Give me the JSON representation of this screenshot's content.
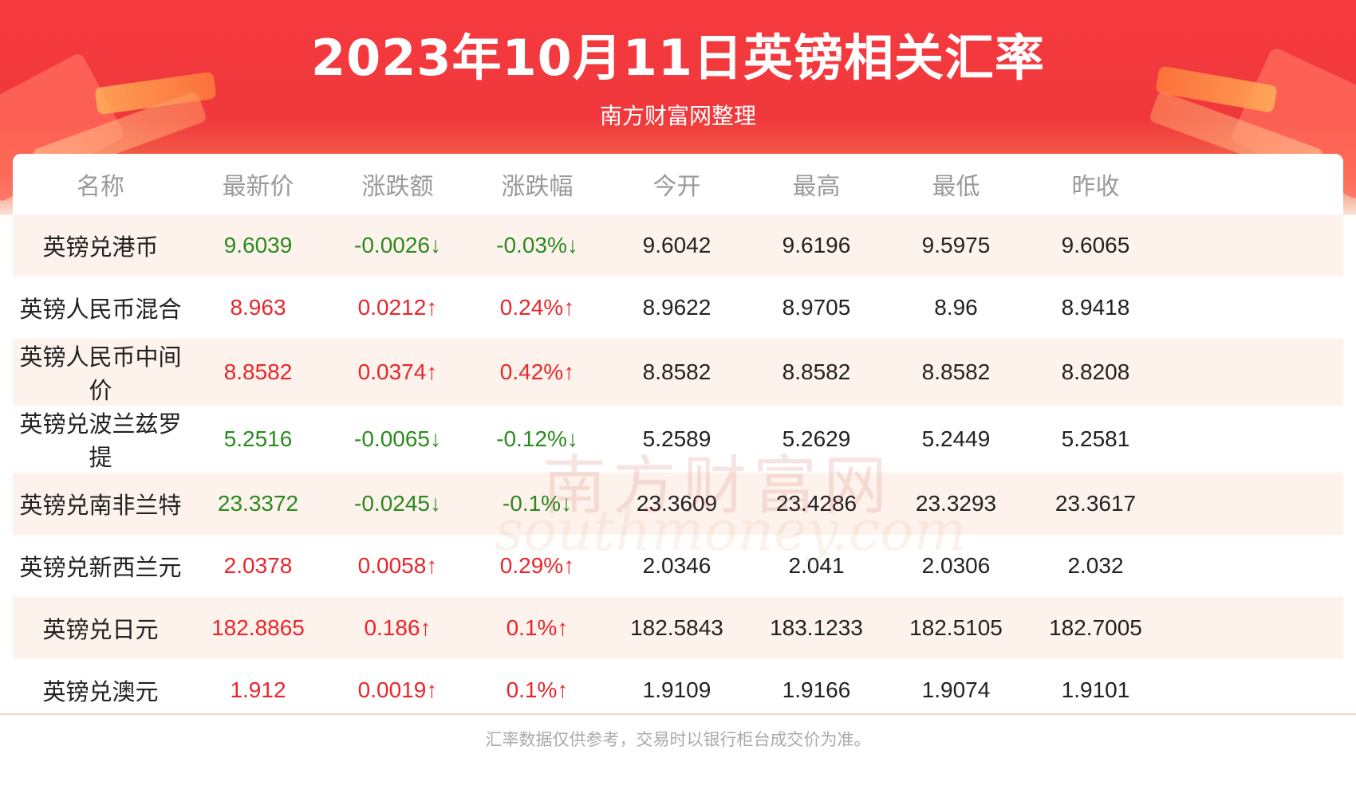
{
  "header": {
    "title": "2023年10月11日英镑相关汇率",
    "subtitle": "南方财富网整理"
  },
  "colors": {
    "header_red": "#f0383c",
    "up_red": "#e8262b",
    "down_green": "#2a8a1e",
    "row_tint": "#fdf3ec"
  },
  "table": {
    "columns": [
      "名称",
      "最新价",
      "涨跌额",
      "涨跌幅",
      "今开",
      "最高",
      "最低",
      "昨收"
    ],
    "rows": [
      {
        "name": "英镑兑港币",
        "latest": "9.6039",
        "change": "-0.0026↓",
        "change_pct": "-0.03%↓",
        "open": "9.6042",
        "high": "9.6196",
        "low": "9.5975",
        "prev_close": "9.6065",
        "trend": "down"
      },
      {
        "name": "英镑人民币混合",
        "latest": "8.963",
        "change": "0.0212↑",
        "change_pct": "0.24%↑",
        "open": "8.9622",
        "high": "8.9705",
        "low": "8.96",
        "prev_close": "8.9418",
        "trend": "up"
      },
      {
        "name": "英镑人民币中间价",
        "latest": "8.8582",
        "change": "0.0374↑",
        "change_pct": "0.42%↑",
        "open": "8.8582",
        "high": "8.8582",
        "low": "8.8582",
        "prev_close": "8.8208",
        "trend": "up"
      },
      {
        "name": "英镑兑波兰兹罗提",
        "latest": "5.2516",
        "change": "-0.0065↓",
        "change_pct": "-0.12%↓",
        "open": "5.2589",
        "high": "5.2629",
        "low": "5.2449",
        "prev_close": "5.2581",
        "trend": "down"
      },
      {
        "name": "英镑兑南非兰特",
        "latest": "23.3372",
        "change": "-0.0245↓",
        "change_pct": "-0.1%↓",
        "open": "23.3609",
        "high": "23.4286",
        "low": "23.3293",
        "prev_close": "23.3617",
        "trend": "down"
      },
      {
        "name": "英镑兑新西兰元",
        "latest": "2.0378",
        "change": "0.0058↑",
        "change_pct": "0.29%↑",
        "open": "2.0346",
        "high": "2.041",
        "low": "2.0306",
        "prev_close": "2.032",
        "trend": "up"
      },
      {
        "name": "英镑兑日元",
        "latest": "182.8865",
        "change": "0.186↑",
        "change_pct": "0.1%↑",
        "open": "182.5843",
        "high": "183.1233",
        "low": "182.5105",
        "prev_close": "182.7005",
        "trend": "up"
      },
      {
        "name": "英镑兑澳元",
        "latest": "1.912",
        "change": "0.0019↑",
        "change_pct": "0.1%↑",
        "open": "1.9109",
        "high": "1.9166",
        "low": "1.9074",
        "prev_close": "1.9101",
        "trend": "up"
      }
    ]
  },
  "watermark": {
    "cn": "南方财富网",
    "en": "southmoney.com"
  },
  "footer": {
    "note": "汇率数据仅供参考，交易时以银行柜台成交价为准。"
  }
}
